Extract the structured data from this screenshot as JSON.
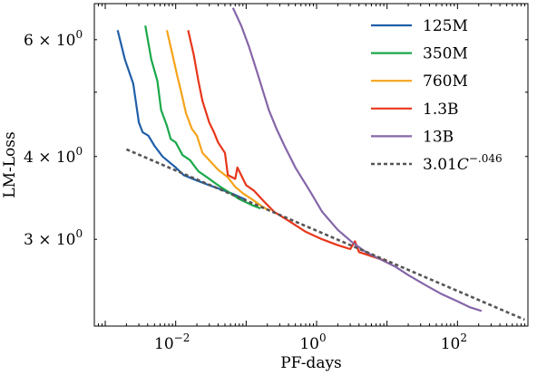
{
  "chart_data": {
    "type": "line",
    "title": "",
    "xlabel": "PF-days",
    "ylabel": "LM-Loss",
    "xscale": "log",
    "yscale": "log",
    "xlim": [
      0.0007,
      1000
    ],
    "ylim": [
      2.22,
      6.8
    ],
    "grid": false,
    "legend_position": "top-right",
    "x_ticks": [
      {
        "value": 0.01,
        "base": "10",
        "exp": "−2"
      },
      {
        "value": 1,
        "base": "10",
        "exp": "0"
      },
      {
        "value": 100,
        "base": "10",
        "exp": "2"
      }
    ],
    "y_ticks": [
      {
        "value": 3,
        "coef": "3 × 10",
        "exp": "0"
      },
      {
        "value": 4,
        "coef": "4 × 10",
        "exp": "0"
      },
      {
        "value": 6,
        "coef": "6 × 10",
        "exp": "0"
      }
    ],
    "series": [
      {
        "name": "125M",
        "color": "#1f5fa8",
        "dash": false,
        "points": [
          [
            0.0015,
            6.2
          ],
          [
            0.0019,
            5.6
          ],
          [
            0.0025,
            5.15
          ],
          [
            0.003,
            4.5
          ],
          [
            0.0034,
            4.35
          ],
          [
            0.0041,
            4.3
          ],
          [
            0.005,
            4.15
          ],
          [
            0.0065,
            4.0
          ],
          [
            0.0075,
            3.95
          ],
          [
            0.01,
            3.85
          ],
          [
            0.013,
            3.75
          ],
          [
            0.02,
            3.68
          ],
          [
            0.03,
            3.62
          ],
          [
            0.05,
            3.55
          ],
          [
            0.07,
            3.5
          ],
          [
            0.1,
            3.44
          ]
        ]
      },
      {
        "name": "350M",
        "color": "#1aa84a",
        "dash": false,
        "points": [
          [
            0.0037,
            6.3
          ],
          [
            0.0045,
            5.6
          ],
          [
            0.0055,
            5.2
          ],
          [
            0.0062,
            4.7
          ],
          [
            0.0075,
            4.45
          ],
          [
            0.0085,
            4.25
          ],
          [
            0.01,
            4.2
          ],
          [
            0.0125,
            4.02
          ],
          [
            0.016,
            3.95
          ],
          [
            0.021,
            3.8
          ],
          [
            0.028,
            3.72
          ],
          [
            0.04,
            3.62
          ],
          [
            0.06,
            3.52
          ],
          [
            0.08,
            3.45
          ],
          [
            0.12,
            3.38
          ],
          [
            0.16,
            3.34
          ]
        ]
      },
      {
        "name": "760M",
        "color": "#f5a31a",
        "dash": false,
        "points": [
          [
            0.0075,
            6.2
          ],
          [
            0.009,
            5.7
          ],
          [
            0.0105,
            5.3
          ],
          [
            0.012,
            5.0
          ],
          [
            0.014,
            4.65
          ],
          [
            0.017,
            4.4
          ],
          [
            0.02,
            4.3
          ],
          [
            0.024,
            4.05
          ],
          [
            0.032,
            3.92
          ],
          [
            0.04,
            3.82
          ],
          [
            0.055,
            3.72
          ],
          [
            0.07,
            3.6
          ],
          [
            0.09,
            3.52
          ],
          [
            0.12,
            3.45
          ],
          [
            0.17,
            3.36
          ],
          [
            0.22,
            3.31
          ]
        ]
      },
      {
        "name": "1.3B",
        "color": "#e8361a",
        "dash": false,
        "points": [
          [
            0.015,
            6.2
          ],
          [
            0.018,
            5.7
          ],
          [
            0.021,
            5.2
          ],
          [
            0.024,
            4.85
          ],
          [
            0.03,
            4.5
          ],
          [
            0.035,
            4.35
          ],
          [
            0.04,
            4.2
          ],
          [
            0.05,
            4.05
          ],
          [
            0.055,
            3.75
          ],
          [
            0.07,
            3.7
          ],
          [
            0.075,
            3.85
          ],
          [
            0.1,
            3.62
          ],
          [
            0.13,
            3.55
          ],
          [
            0.18,
            3.42
          ],
          [
            0.25,
            3.3
          ],
          [
            0.4,
            3.2
          ],
          [
            0.7,
            3.08
          ],
          [
            1.2,
            3.0
          ],
          [
            2.0,
            2.94
          ],
          [
            3.0,
            2.9
          ],
          [
            3.5,
            2.98
          ],
          [
            4.0,
            2.87
          ],
          [
            6.0,
            2.83
          ],
          [
            10.0,
            2.78
          ]
        ]
      },
      {
        "name": "13B",
        "color": "#8566a8",
        "dash": false,
        "points": [
          [
            0.065,
            6.7
          ],
          [
            0.085,
            6.3
          ],
          [
            0.11,
            5.85
          ],
          [
            0.14,
            5.4
          ],
          [
            0.17,
            5.05
          ],
          [
            0.21,
            4.7
          ],
          [
            0.27,
            4.4
          ],
          [
            0.35,
            4.15
          ],
          [
            0.5,
            3.85
          ],
          [
            0.8,
            3.55
          ],
          [
            1.2,
            3.3
          ],
          [
            2.0,
            3.1
          ],
          [
            3.2,
            2.97
          ],
          [
            5.0,
            2.87
          ],
          [
            8.0,
            2.8
          ],
          [
            13.0,
            2.73
          ],
          [
            20.0,
            2.65
          ],
          [
            35.0,
            2.56
          ],
          [
            60.0,
            2.48
          ],
          [
            100.0,
            2.42
          ],
          [
            150.0,
            2.37
          ],
          [
            220.0,
            2.34
          ]
        ]
      },
      {
        "name": "3.01C",
        "name_exp": "−.046",
        "color": "#555555",
        "dash": true,
        "points": [
          [
            0.002,
            4.1
          ],
          [
            900,
            2.27
          ]
        ]
      }
    ]
  }
}
